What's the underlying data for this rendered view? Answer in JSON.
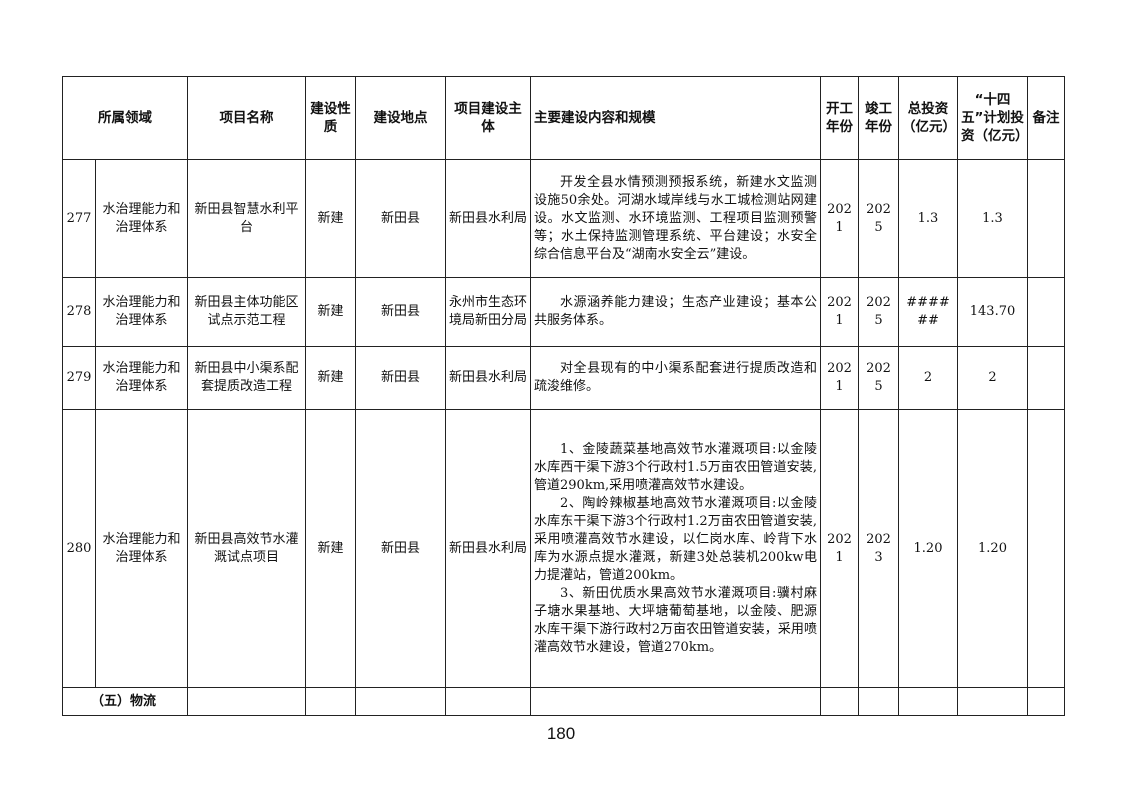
{
  "header": {
    "domain": "所属领域",
    "name": "项目名称",
    "nature": "建设性质",
    "location": "建设地点",
    "owner": "项目建设主体",
    "content": "主要建设内容和规模",
    "start": "开工年份",
    "end": "竣工年份",
    "total": "总投资（亿元）",
    "plan": "“十四五”计划投资（亿元）",
    "note": "备注"
  },
  "rows": [
    {
      "no": "277",
      "domain": "水治理能力和治理体系",
      "name": "新田县智慧水利平台",
      "nature": "新建",
      "location": "新田县",
      "owner": "新田县水利局",
      "content": [
        "开发全县水情预测预报系统，新建水文监测设施50余处。河湖水域岸线与水工城检测站网建设。水文监测、水环境监测、工程项目监测预警等；水土保持监测管理系统、平台建设；水安全综合信息平台及“湖南水安全云”建设。"
      ],
      "start": "2021",
      "end": "2025",
      "total": "1.3",
      "plan": "1.3",
      "note": ""
    },
    {
      "no": "278",
      "domain": "水治理能力和治理体系",
      "name": "新田县主体功能区试点示范工程",
      "nature": "新建",
      "location": "新田县",
      "owner": "永州市生态环境局新田分局",
      "content": [
        "水源涵养能力建设；生态产业建设；基本公共服务体系。"
      ],
      "start": "2021",
      "end": "2025",
      "total": "######",
      "plan": "143.70",
      "note": ""
    },
    {
      "no": "279",
      "domain": "水治理能力和治理体系",
      "name": "新田县中小渠系配套提质改造工程",
      "nature": "新建",
      "location": "新田县",
      "owner": "新田县水利局",
      "content": [
        "对全县现有的中小渠系配套进行提质改造和疏浚维修。"
      ],
      "start": "2021",
      "end": "2025",
      "total": "2",
      "plan": "2",
      "note": ""
    },
    {
      "no": "280",
      "domain": "水治理能力和治理体系",
      "name": "新田县高效节水灌溉试点项目",
      "nature": "新建",
      "location": "新田县",
      "owner": "新田县水利局",
      "content": [
        "1、金陵蔬菜基地高效节水灌溉项目:以金陵水库西干渠下游3个行政村1.5万亩农田管道安装,管道290km,采用喷灌高效节水建设。",
        "2、陶岭辣椒基地高效节水灌溉项目:以金陵水库东干渠下游3个行政村1.2万亩农田管道安装,采用喷灌高效节水建设，以仁岗水库、岭背下水库为水源点提水灌溉，新建3处总装机200kw电力提灌站，管道200km。",
        "3、新田优质水果高效节水灌溉项目:骥村麻子塘水果基地、大坪塘葡萄基地，以金陵、肥源水库干渠下游行政村2万亩农田管道安装，采用喷灌高效节水建设，管道270km。"
      ],
      "start": "2021",
      "end": "2023",
      "total": "1.20",
      "plan": "1.20",
      "note": ""
    }
  ],
  "section": {
    "label": "（五）物流"
  },
  "page_number": "180"
}
